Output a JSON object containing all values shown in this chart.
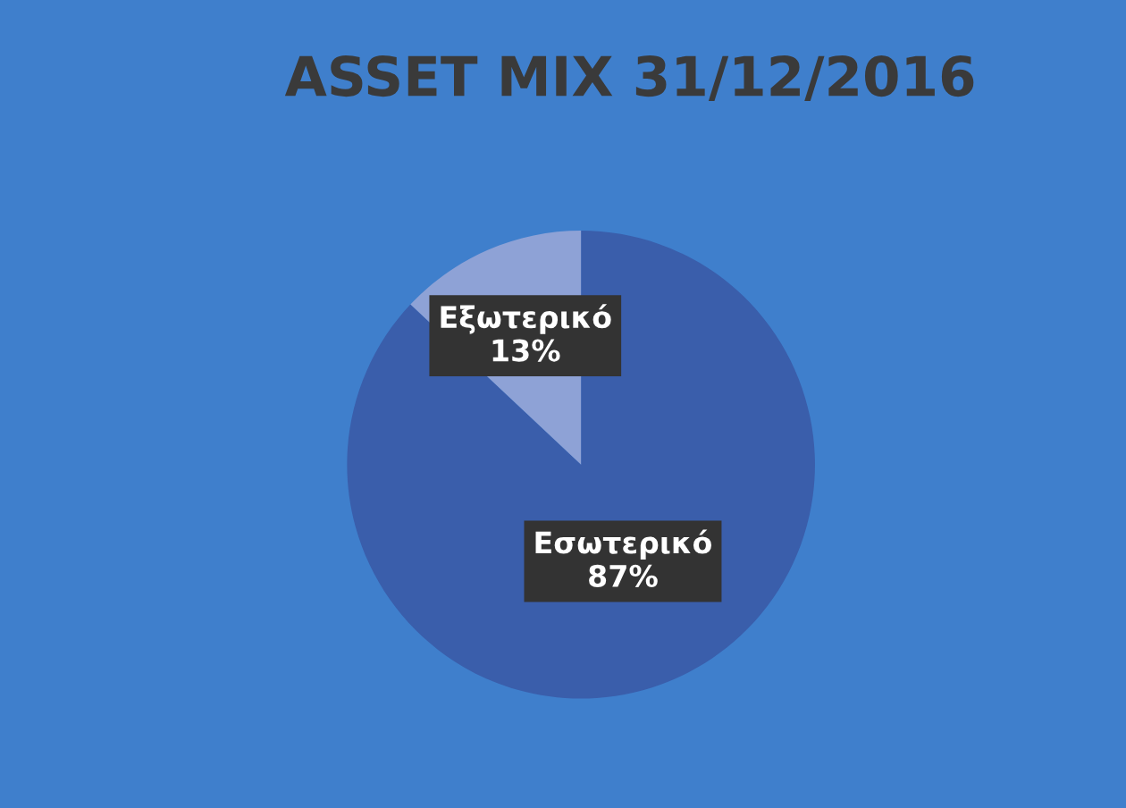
{
  "chart_data": {
    "type": "pie",
    "title": "ASSET MIX 31/12/2016",
    "categories": [
      "Εσωτερικό",
      "Εξωτερικό"
    ],
    "values": [
      87,
      13
    ],
    "value_labels": [
      "87%",
      "13%"
    ],
    "colors": [
      "#3a5eab",
      "#8ea2d6"
    ],
    "legend": false
  }
}
